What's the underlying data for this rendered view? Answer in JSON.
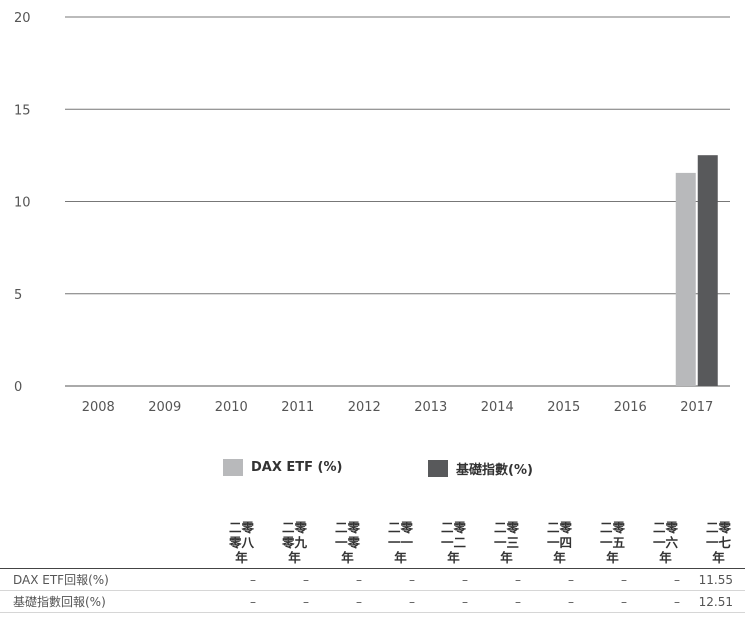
{
  "chart_data": {
    "type": "bar",
    "categories": [
      "2008",
      "2009",
      "2010",
      "2011",
      "2012",
      "2013",
      "2014",
      "2015",
      "2016",
      "2017"
    ],
    "series": [
      {
        "name": "DAX ETF (%)",
        "color": "#b8b9bb",
        "values": [
          null,
          null,
          null,
          null,
          null,
          null,
          null,
          null,
          null,
          11.55
        ]
      },
      {
        "name": "基礎指數(%)",
        "color": "#58595b",
        "values": [
          null,
          null,
          null,
          null,
          null,
          null,
          null,
          null,
          null,
          12.51
        ]
      }
    ],
    "title": "",
    "xlabel": "",
    "ylabel": "",
    "ylim": [
      0,
      20
    ],
    "yticks": [
      0,
      5,
      10,
      15,
      20
    ],
    "grid": true,
    "legend": "bottom"
  },
  "legend": [
    {
      "label": "DAX ETF (%)",
      "color": "#b8b9bb"
    },
    {
      "label": "基礎指數(%)",
      "color": "#58595b"
    }
  ],
  "table": {
    "headers": [
      "二零零八年",
      "二零零九年",
      "二零一零年",
      "二零一一年",
      "二零一二年",
      "二零一三年",
      "二零一四年",
      "二零一五年",
      "二零一六年",
      "二零一七年"
    ],
    "rows": [
      {
        "label": "DAX ETF回報(%)",
        "values": [
          "–",
          "–",
          "–",
          "–",
          "–",
          "–",
          "–",
          "–",
          "–",
          "11.55"
        ]
      },
      {
        "label": "基礎指數回報(%)",
        "values": [
          "–",
          "–",
          "–",
          "–",
          "–",
          "–",
          "–",
          "–",
          "–",
          "12.51"
        ]
      }
    ]
  }
}
